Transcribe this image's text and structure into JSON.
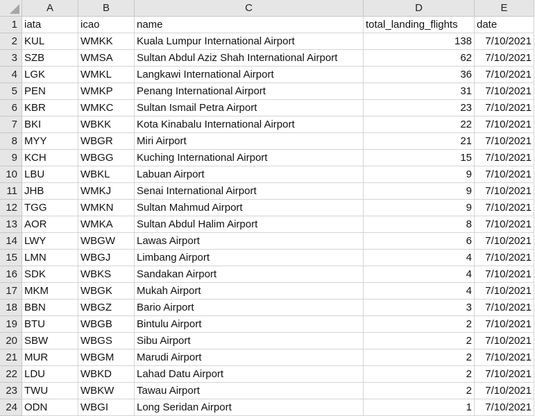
{
  "columns": [
    "A",
    "B",
    "C",
    "D",
    "E"
  ],
  "header_row": {
    "row_number": "1",
    "cells": [
      "iata",
      "icao",
      "name",
      "total_landing_flights",
      "date"
    ]
  },
  "rows": [
    {
      "row_number": "2",
      "iata": "KUL",
      "icao": "WMKK",
      "name": "Kuala Lumpur International Airport",
      "total_landing_flights": "138",
      "date": "7/10/2021"
    },
    {
      "row_number": "3",
      "iata": "SZB",
      "icao": "WMSA",
      "name": "Sultan Abdul Aziz Shah International Airport",
      "total_landing_flights": "62",
      "date": "7/10/2021"
    },
    {
      "row_number": "4",
      "iata": "LGK",
      "icao": "WMKL",
      "name": "Langkawi International Airport",
      "total_landing_flights": "36",
      "date": "7/10/2021"
    },
    {
      "row_number": "5",
      "iata": "PEN",
      "icao": "WMKP",
      "name": "Penang International Airport",
      "total_landing_flights": "31",
      "date": "7/10/2021"
    },
    {
      "row_number": "6",
      "iata": "KBR",
      "icao": "WMKC",
      "name": "Sultan Ismail Petra Airport",
      "total_landing_flights": "23",
      "date": "7/10/2021"
    },
    {
      "row_number": "7",
      "iata": "BKI",
      "icao": "WBKK",
      "name": "Kota Kinabalu International Airport",
      "total_landing_flights": "22",
      "date": "7/10/2021"
    },
    {
      "row_number": "8",
      "iata": "MYY",
      "icao": "WBGR",
      "name": "Miri Airport",
      "total_landing_flights": "21",
      "date": "7/10/2021"
    },
    {
      "row_number": "9",
      "iata": "KCH",
      "icao": "WBGG",
      "name": "Kuching International Airport",
      "total_landing_flights": "15",
      "date": "7/10/2021"
    },
    {
      "row_number": "10",
      "iata": "LBU",
      "icao": "WBKL",
      "name": "Labuan Airport",
      "total_landing_flights": "9",
      "date": "7/10/2021"
    },
    {
      "row_number": "11",
      "iata": "JHB",
      "icao": "WMKJ",
      "name": "Senai International Airport",
      "total_landing_flights": "9",
      "date": "7/10/2021"
    },
    {
      "row_number": "12",
      "iata": "TGG",
      "icao": "WMKN",
      "name": "Sultan Mahmud Airport",
      "total_landing_flights": "9",
      "date": "7/10/2021"
    },
    {
      "row_number": "13",
      "iata": "AOR",
      "icao": "WMKA",
      "name": "Sultan Abdul Halim Airport",
      "total_landing_flights": "8",
      "date": "7/10/2021"
    },
    {
      "row_number": "14",
      "iata": "LWY",
      "icao": "WBGW",
      "name": "Lawas Airport",
      "total_landing_flights": "6",
      "date": "7/10/2021"
    },
    {
      "row_number": "15",
      "iata": "LMN",
      "icao": "WBGJ",
      "name": "Limbang Airport",
      "total_landing_flights": "4",
      "date": "7/10/2021"
    },
    {
      "row_number": "16",
      "iata": "SDK",
      "icao": "WBKS",
      "name": "Sandakan Airport",
      "total_landing_flights": "4",
      "date": "7/10/2021"
    },
    {
      "row_number": "17",
      "iata": "MKM",
      "icao": "WBGK",
      "name": "Mukah Airport",
      "total_landing_flights": "4",
      "date": "7/10/2021"
    },
    {
      "row_number": "18",
      "iata": "BBN",
      "icao": "WBGZ",
      "name": "Bario Airport",
      "total_landing_flights": "3",
      "date": "7/10/2021"
    },
    {
      "row_number": "19",
      "iata": "BTU",
      "icao": "WBGB",
      "name": "Bintulu Airport",
      "total_landing_flights": "2",
      "date": "7/10/2021"
    },
    {
      "row_number": "20",
      "iata": "SBW",
      "icao": "WBGS",
      "name": "Sibu Airport",
      "total_landing_flights": "2",
      "date": "7/10/2021"
    },
    {
      "row_number": "21",
      "iata": "MUR",
      "icao": "WBGM",
      "name": "Marudi Airport",
      "total_landing_flights": "2",
      "date": "7/10/2021"
    },
    {
      "row_number": "22",
      "iata": "LDU",
      "icao": "WBKD",
      "name": "Lahad Datu Airport",
      "total_landing_flights": "2",
      "date": "7/10/2021"
    },
    {
      "row_number": "23",
      "iata": "TWU",
      "icao": "WBKW",
      "name": "Tawau Airport",
      "total_landing_flights": "2",
      "date": "7/10/2021"
    },
    {
      "row_number": "24",
      "iata": "ODN",
      "icao": "WBGI",
      "name": "Long Seridan Airport",
      "total_landing_flights": "1",
      "date": "7/10/2021"
    }
  ],
  "icons": {
    "select_all": "select-all-triangle-icon"
  }
}
